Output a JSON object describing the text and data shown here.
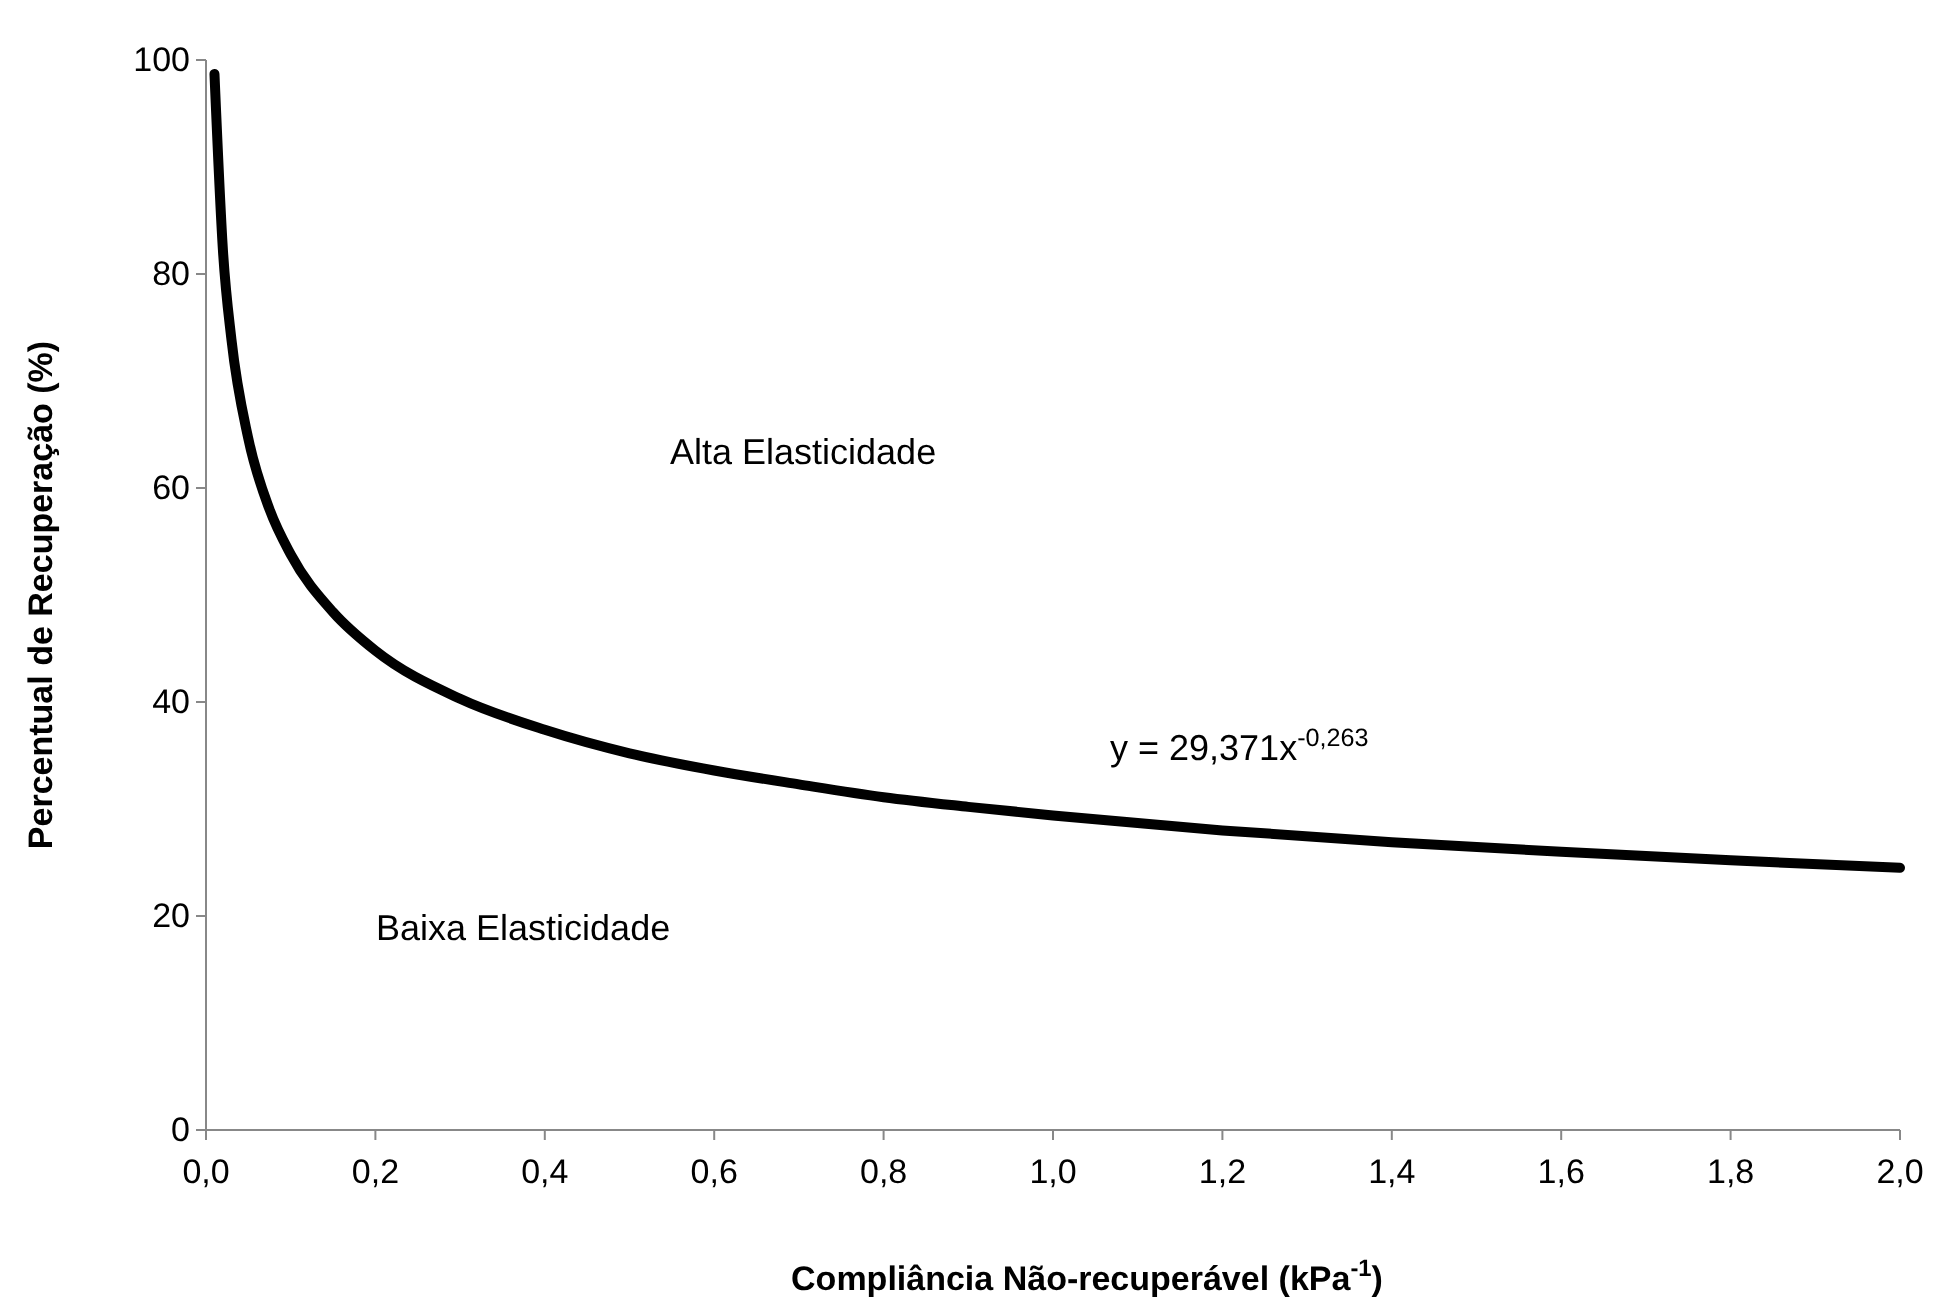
{
  "chart_data": {
    "type": "line",
    "xlabel": "Compliância Não-recuperável (kPa$^{-1}$)",
    "ylabel": "Percentual de Recuperação (%)",
    "annotations": [
      "Alta Elasticidade",
      "Baixa Elasticidade",
      "y = 29,371x$^{-0,263}$"
    ],
    "x": [
      0.01,
      0.02,
      0.03,
      0.05,
      0.075,
      0.1,
      0.15,
      0.2,
      0.3,
      0.4,
      0.5,
      0.6,
      0.7,
      0.8,
      0.9,
      1.0,
      1.2,
      1.4,
      1.6,
      1.8,
      2.0
    ],
    "series": [
      {
        "color": "#000000",
        "values": [
          98.7,
          82.2,
          73.9,
          64.6,
          58.0,
          53.8,
          48.4,
          44.8,
          40.3,
          37.4,
          35.2,
          33.6,
          32.3,
          31.1,
          30.2,
          29.4,
          28.0,
          26.9,
          26.0,
          25.2,
          24.5
        ]
      }
    ],
    "xlim": [
      0,
      2
    ],
    "ylim": [
      0,
      100
    ],
    "xticks": [
      {
        "value": 0,
        "label": "0,0"
      },
      {
        "value": 0.2,
        "label": "0,2"
      },
      {
        "value": 0.4,
        "label": "0,4"
      },
      {
        "value": 0.6,
        "label": "0,6"
      },
      {
        "value": 0.8,
        "label": "0,8"
      },
      {
        "value": 1.0,
        "label": "1,0"
      },
      {
        "value": 1.2,
        "label": "1,2"
      },
      {
        "value": 1.4,
        "label": "1,4"
      },
      {
        "value": 1.6,
        "label": "1,6"
      },
      {
        "value": 1.8,
        "label": "1,8"
      },
      {
        "value": 2.0,
        "label": "2,0"
      }
    ],
    "yticks": [
      0,
      20,
      40,
      60,
      80,
      100
    ],
    "grid": false,
    "marker": "none",
    "line_style": "solid"
  }
}
